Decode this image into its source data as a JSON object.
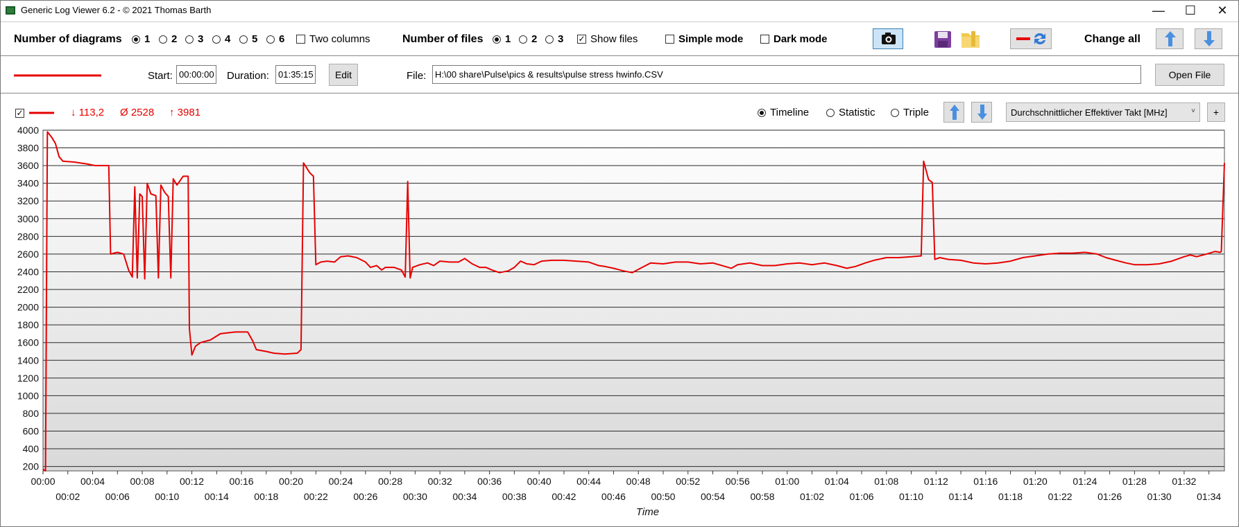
{
  "window": {
    "title": "Generic Log Viewer 6.2 - © 2021 Thomas Barth",
    "minimize": "—",
    "maximize": "☐",
    "close": "✕"
  },
  "toolbar": {
    "num_diagrams_label": "Number of diagrams",
    "diagram_options": [
      "1",
      "2",
      "3",
      "4",
      "5",
      "6"
    ],
    "diagram_selected": "1",
    "two_columns_label": "Two columns",
    "num_files_label": "Number of files",
    "file_options": [
      "1",
      "2",
      "3"
    ],
    "file_selected": "1",
    "show_files_label": "Show files",
    "simple_mode_label": "Simple mode",
    "dark_mode_label": "Dark mode",
    "change_all_label": "Change all"
  },
  "filebar": {
    "start_label": "Start:",
    "start_value": "00:00:00",
    "duration_label": "Duration:",
    "duration_value": "01:35:15",
    "edit_label": "Edit",
    "file_label": "File:",
    "file_path": "H:\\00 share\\Pulse\\pics & results\\pulse stress hwinfo.CSV",
    "open_file_label": "Open File"
  },
  "diagram": {
    "stats": {
      "min": "↓ 113,2",
      "avg": "Ø 2528",
      "max": "↑ 3981"
    },
    "modes": [
      "Timeline",
      "Statistic",
      "Triple"
    ],
    "mode_selected": "Timeline",
    "sensor": "Durchschnittlicher Effektiver Takt [MHz]",
    "plus": "+"
  },
  "colors": {
    "series": "#e60000",
    "accent": "#3c7fb1"
  },
  "chart_data": {
    "type": "line",
    "xlabel": "Time",
    "ylabel": "",
    "xlim": [
      0,
      95.25
    ],
    "ylim": [
      150,
      4000
    ],
    "yticks": [
      200,
      400,
      600,
      800,
      1000,
      1200,
      1400,
      1600,
      1800,
      2000,
      2200,
      2400,
      2600,
      2800,
      3000,
      3200,
      3400,
      3600,
      3800,
      4000
    ],
    "xticks_upper": [
      "00:00",
      "00:04",
      "00:08",
      "00:12",
      "00:16",
      "00:20",
      "00:24",
      "00:28",
      "00:32",
      "00:36",
      "00:40",
      "00:44",
      "00:48",
      "00:52",
      "00:56",
      "01:00",
      "01:04",
      "01:08",
      "01:12",
      "01:16",
      "01:20",
      "01:24",
      "01:28",
      "01:32"
    ],
    "xticks_lower": [
      "00:02",
      "00:06",
      "00:10",
      "00:14",
      "00:18",
      "00:22",
      "00:26",
      "00:30",
      "00:34",
      "00:38",
      "00:42",
      "00:46",
      "00:50",
      "00:54",
      "00:58",
      "01:02",
      "01:06",
      "01:10",
      "01:14",
      "01:18",
      "01:22",
      "01:26",
      "01:30",
      "01:34"
    ],
    "grid": true,
    "series": [
      {
        "points": [
          [
            0,
            170
          ],
          [
            0.2,
            113
          ],
          [
            0.35,
            3981
          ],
          [
            0.7,
            3920
          ],
          [
            1.0,
            3850
          ],
          [
            1.3,
            3700
          ],
          [
            1.6,
            3650
          ],
          [
            2.5,
            3640
          ],
          [
            3.5,
            3620
          ],
          [
            4.2,
            3600
          ],
          [
            5.3,
            3600
          ],
          [
            5.45,
            2600
          ],
          [
            6.0,
            2620
          ],
          [
            6.5,
            2600
          ],
          [
            6.9,
            2420
          ],
          [
            7.2,
            2340
          ],
          [
            7.4,
            3360
          ],
          [
            7.6,
            2330
          ],
          [
            7.8,
            3280
          ],
          [
            8.0,
            3250
          ],
          [
            8.2,
            2320
          ],
          [
            8.4,
            3400
          ],
          [
            8.7,
            3280
          ],
          [
            9.1,
            3260
          ],
          [
            9.3,
            2330
          ],
          [
            9.5,
            3380
          ],
          [
            9.8,
            3300
          ],
          [
            10.1,
            3250
          ],
          [
            10.3,
            2330
          ],
          [
            10.5,
            3450
          ],
          [
            10.8,
            3380
          ],
          [
            11.3,
            3480
          ],
          [
            11.7,
            3480
          ],
          [
            11.8,
            1760
          ],
          [
            12.0,
            1460
          ],
          [
            12.3,
            1560
          ],
          [
            12.7,
            1600
          ],
          [
            13.5,
            1630
          ],
          [
            14.3,
            1700
          ],
          [
            15.5,
            1720
          ],
          [
            16.5,
            1720
          ],
          [
            16.9,
            1620
          ],
          [
            17.2,
            1520
          ],
          [
            18.0,
            1500
          ],
          [
            18.6,
            1480
          ],
          [
            19.5,
            1470
          ],
          [
            20.5,
            1480
          ],
          [
            20.8,
            1520
          ],
          [
            21.0,
            3630
          ],
          [
            21.5,
            3520
          ],
          [
            21.8,
            3480
          ],
          [
            22.0,
            2480
          ],
          [
            22.4,
            2510
          ],
          [
            22.9,
            2520
          ],
          [
            23.5,
            2510
          ],
          [
            24.0,
            2570
          ],
          [
            24.6,
            2580
          ],
          [
            25.3,
            2560
          ],
          [
            26.0,
            2510
          ],
          [
            26.4,
            2450
          ],
          [
            26.9,
            2470
          ],
          [
            27.3,
            2420
          ],
          [
            27.6,
            2450
          ],
          [
            28.3,
            2450
          ],
          [
            28.9,
            2420
          ],
          [
            29.2,
            2340
          ],
          [
            29.4,
            3420
          ],
          [
            29.6,
            2330
          ],
          [
            29.8,
            2450
          ],
          [
            30.4,
            2480
          ],
          [
            31.0,
            2500
          ],
          [
            31.5,
            2470
          ],
          [
            32.0,
            2520
          ],
          [
            32.8,
            2510
          ],
          [
            33.5,
            2510
          ],
          [
            34.0,
            2550
          ],
          [
            34.6,
            2490
          ],
          [
            35.2,
            2450
          ],
          [
            35.7,
            2450
          ],
          [
            36.2,
            2420
          ],
          [
            36.8,
            2390
          ],
          [
            37.5,
            2410
          ],
          [
            38.0,
            2450
          ],
          [
            38.5,
            2520
          ],
          [
            39.0,
            2490
          ],
          [
            39.6,
            2480
          ],
          [
            40.2,
            2520
          ],
          [
            41.0,
            2530
          ],
          [
            42.0,
            2530
          ],
          [
            43.0,
            2520
          ],
          [
            44.0,
            2510
          ],
          [
            44.8,
            2470
          ],
          [
            45.3,
            2460
          ],
          [
            46.0,
            2440
          ],
          [
            46.8,
            2410
          ],
          [
            47.5,
            2390
          ],
          [
            48.3,
            2450
          ],
          [
            49.0,
            2500
          ],
          [
            50.0,
            2490
          ],
          [
            51.0,
            2510
          ],
          [
            52.0,
            2510
          ],
          [
            53.0,
            2490
          ],
          [
            54.0,
            2500
          ],
          [
            55.0,
            2460
          ],
          [
            55.5,
            2440
          ],
          [
            56.0,
            2480
          ],
          [
            57.0,
            2500
          ],
          [
            58.0,
            2470
          ],
          [
            59.0,
            2470
          ],
          [
            60.0,
            2490
          ],
          [
            61.0,
            2500
          ],
          [
            62.0,
            2480
          ],
          [
            63.0,
            2500
          ],
          [
            64.0,
            2470
          ],
          [
            64.8,
            2440
          ],
          [
            65.5,
            2460
          ],
          [
            66.3,
            2500
          ],
          [
            67.0,
            2530
          ],
          [
            68.0,
            2560
          ],
          [
            69.0,
            2560
          ],
          [
            70.0,
            2570
          ],
          [
            70.8,
            2580
          ],
          [
            71.0,
            3650
          ],
          [
            71.4,
            3440
          ],
          [
            71.7,
            3410
          ],
          [
            71.9,
            2540
          ],
          [
            72.3,
            2560
          ],
          [
            73.0,
            2540
          ],
          [
            74.0,
            2530
          ],
          [
            75.0,
            2500
          ],
          [
            76.0,
            2490
          ],
          [
            77.0,
            2500
          ],
          [
            78.0,
            2520
          ],
          [
            79.0,
            2560
          ],
          [
            80.0,
            2580
          ],
          [
            81.0,
            2600
          ],
          [
            82.0,
            2610
          ],
          [
            83.0,
            2610
          ],
          [
            84.0,
            2620
          ],
          [
            85.0,
            2600
          ],
          [
            85.7,
            2560
          ],
          [
            86.5,
            2530
          ],
          [
            87.3,
            2500
          ],
          [
            88.0,
            2480
          ],
          [
            89.0,
            2480
          ],
          [
            90.0,
            2490
          ],
          [
            91.0,
            2520
          ],
          [
            92.0,
            2570
          ],
          [
            92.5,
            2590
          ],
          [
            93.0,
            2570
          ],
          [
            93.8,
            2600
          ],
          [
            94.5,
            2630
          ],
          [
            94.9,
            2620
          ],
          [
            95.0,
            2630
          ],
          [
            95.25,
            3630
          ]
        ]
      }
    ]
  }
}
